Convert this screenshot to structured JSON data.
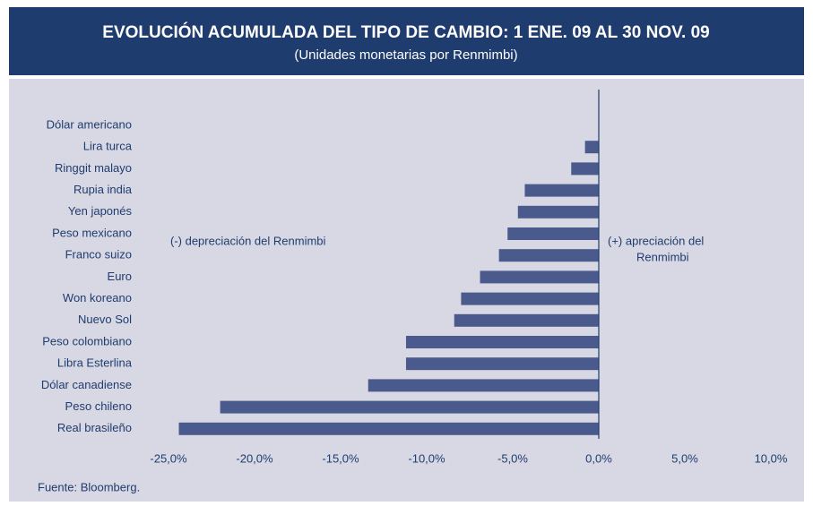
{
  "chart_data": {
    "type": "barh",
    "title": "EVOLUCIÓN ACUMULADA DEL TIPO DE CAMBIO: 1 ENE. 09 AL 30 NOV. 09",
    "subtitle": "(Unidades monetarias por Renmimbi)",
    "categories": [
      "Dólar americano",
      "Lira turca",
      "Ringgit malayo",
      "Rupia india",
      "Yen japonés",
      "Peso mexicano",
      "Franco suizo",
      "Euro",
      "Won koreano",
      "Nuevo Sol",
      "Peso colombiano",
      "Libra Esterlina",
      "Dólar canadiense",
      "Peso chileno",
      "Real brasileño"
    ],
    "values": [
      0,
      -0.8,
      -1.6,
      -4.3,
      -4.7,
      -5.3,
      -5.8,
      -6.9,
      -8.0,
      -8.4,
      -11.2,
      -11.2,
      -13.4,
      -22.0,
      -24.4
    ],
    "color": "#4b5a8c",
    "xlim": [
      -25,
      10
    ],
    "xticks": [
      {
        "value": -25,
        "label": "-25,0%"
      },
      {
        "value": -20,
        "label": "-20,0%"
      },
      {
        "value": -15,
        "label": "-15,0%"
      },
      {
        "value": -10,
        "label": "-10,0%"
      },
      {
        "value": -5,
        "label": "-5,0%"
      },
      {
        "value": 0,
        "label": "0,0%"
      },
      {
        "value": 5,
        "label": "5,0%"
      },
      {
        "value": 10,
        "label": "10,0%"
      }
    ],
    "annotations": [
      "(-) depreciación del  Renmimbi",
      "(+) apreciación del",
      "Renmimbi"
    ],
    "source": "Fuente: Bloomberg."
  }
}
